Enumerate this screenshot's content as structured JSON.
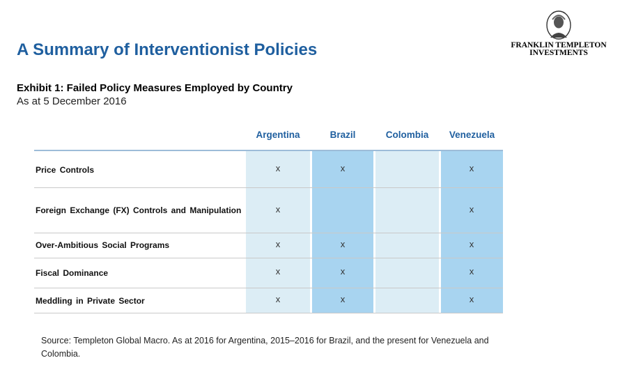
{
  "page": {
    "title": "A Summary of Interventionist Policies",
    "logo": {
      "line1": "FRANKLIN TEMPLETON",
      "line2": "INVESTMENTS"
    },
    "exhibit_title": "Exhibit 1: Failed Policy Measures Employed by Country",
    "exhibit_subtitle": "As at 5 December 2016",
    "source": "Source: Templeton Global Macro. As at 2016 for Argentina, 2015–2016 for Brazil, and the present for Venezuela and Colombia."
  },
  "table": {
    "columns": [
      "Argentina",
      "Brazil",
      "Colombia",
      "Venezuela"
    ],
    "column_colors": [
      "#dcedf5",
      "#a8d4f0",
      "#dcedf5",
      "#a8d4f0"
    ],
    "mark_symbol": "x",
    "rows": [
      {
        "label": "Price  Controls",
        "marks": [
          true,
          true,
          false,
          true
        ]
      },
      {
        "label": "Foreign  Exchange  (FX) Controls  and  Manipulation",
        "marks": [
          true,
          false,
          false,
          true
        ]
      },
      {
        "label": "Over-Ambitious  Social  Programs",
        "marks": [
          true,
          true,
          false,
          true
        ]
      },
      {
        "label": "Fiscal  Dominance",
        "marks": [
          true,
          true,
          false,
          true
        ]
      },
      {
        "label": "Meddling  in  Private  Sector",
        "marks": [
          true,
          true,
          false,
          true
        ]
      }
    ]
  }
}
